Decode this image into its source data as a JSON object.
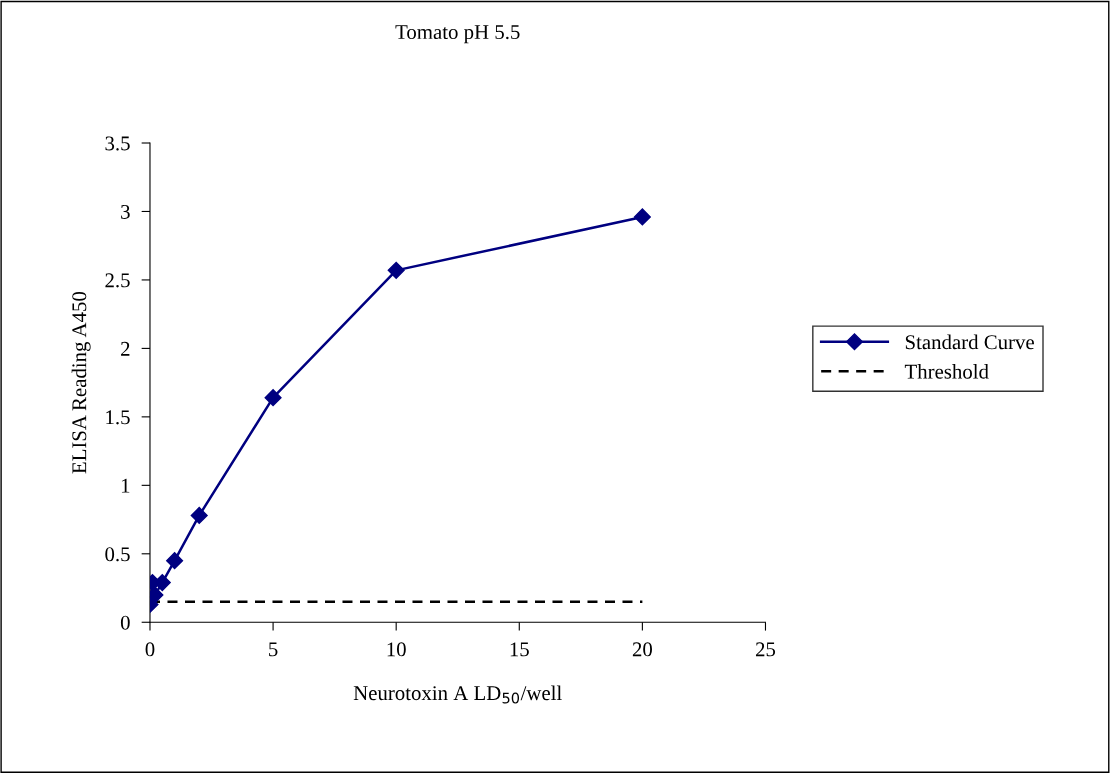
{
  "chart_data": {
    "type": "line",
    "title": "Tomato pH 5.5",
    "xlabel": "Neurotoxin A LD$_{50}$/well",
    "ylabel": "ELISA Reading A450",
    "xlim": [
      0,
      25
    ],
    "xticks": [
      0,
      5,
      10,
      15,
      20,
      25
    ],
    "ylim": [
      0,
      3.5
    ],
    "yticks": [
      0,
      0.5,
      1,
      1.5,
      2,
      2.5,
      3,
      3.5
    ],
    "grid": false,
    "legend": "right",
    "series": [
      {
        "name": "Standard Curve",
        "color": "#000080",
        "marker": "diamond",
        "line_style": "solid",
        "x": [
          0,
          0.1,
          0.2,
          0.5,
          1,
          2,
          5,
          10,
          20
        ],
        "values": [
          0.13,
          0.29,
          0.2,
          0.29,
          0.45,
          0.78,
          1.64,
          2.57,
          2.96
        ]
      },
      {
        "name": "Threshold",
        "color": "#000000",
        "marker": "none",
        "line_style": "dashed",
        "x": [
          0,
          20
        ],
        "values": [
          0.15,
          0.15
        ]
      }
    ]
  }
}
